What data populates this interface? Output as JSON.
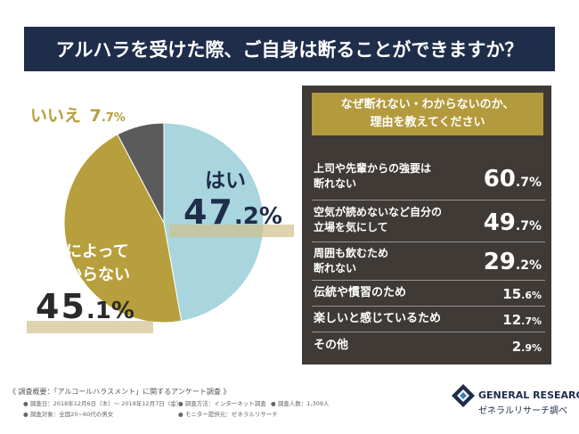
{
  "title": "アルハラを受けた際、ご自身は断ることができますか？",
  "chart_data": [
    {
      "type": "pie",
      "title": "アルハラを受けた際、ご自身は断ることができますか？",
      "slices": [
        {
          "label": "はい",
          "value": 47.2,
          "int": "47",
          "dec": ".2%",
          "color": "#a8d5de"
        },
        {
          "label": "状況によって分からない",
          "value": 45.1,
          "int": "45",
          "dec": ".1%",
          "color": "#b69f3c"
        },
        {
          "label": "いいえ",
          "value": 7.7,
          "int": "7",
          "dec": ".7%",
          "color": "#5b5b5b"
        }
      ]
    },
    {
      "type": "table",
      "title": "なぜ断れない・わからないのか、理由を教えてください",
      "rows": [
        {
          "label_lines": [
            "上司や先輩からの強要は",
            "断れない"
          ],
          "value": 60.7,
          "int": "60",
          "dec": ".7%"
        },
        {
          "label_lines": [
            "空気が読めないなど自分の",
            "立場を気にして"
          ],
          "value": 49.7,
          "int": "49",
          "dec": ".7%"
        },
        {
          "label_lines": [
            "周囲も飲むため",
            "断れない"
          ],
          "value": 29.2,
          "int": "29",
          "dec": ".2%"
        },
        {
          "label_lines": [
            "伝統や慣習のため"
          ],
          "value": 15.6,
          "int": "15",
          "dec": ".6%"
        },
        {
          "label_lines": [
            "楽しいと感じているため"
          ],
          "value": 12.7,
          "int": "12",
          "dec": ".7%"
        },
        {
          "label_lines": [
            "その他"
          ],
          "value": 2.9,
          "int": "2",
          "dec": ".9%"
        }
      ]
    }
  ],
  "pie_labels": {
    "no_label": "いいえ",
    "yes_label": "はい",
    "unsure_line1": "状況によって",
    "unsure_line2": "分からない"
  },
  "question_lines": [
    "なぜ断れない・わからないのか、",
    "理由を教えてください"
  ],
  "footer": {
    "heading": "《 調査概要：「アルコールハラスメント」に関するアンケート調査 》",
    "period": "● 調査日：2018年12月6日（木）～ 2018年12月7日（金）",
    "method": "● 調査方法：インターネット調査",
    "count": "● 調査人数：1,309人",
    "target": "● 調査対象：全国20~60代の男女",
    "monitor": "● モニター提供元：ゼネラルリサーチ"
  },
  "logo": {
    "name": "GENERAL RESEARCH",
    "sub": "ゼネラルリサーチ調べ"
  },
  "colors": {
    "navy": "#1e2d4a",
    "gold": "#b69f3c",
    "blue": "#a8d5de",
    "gray": "#5b5b5b",
    "panel": "#3f3a36"
  }
}
